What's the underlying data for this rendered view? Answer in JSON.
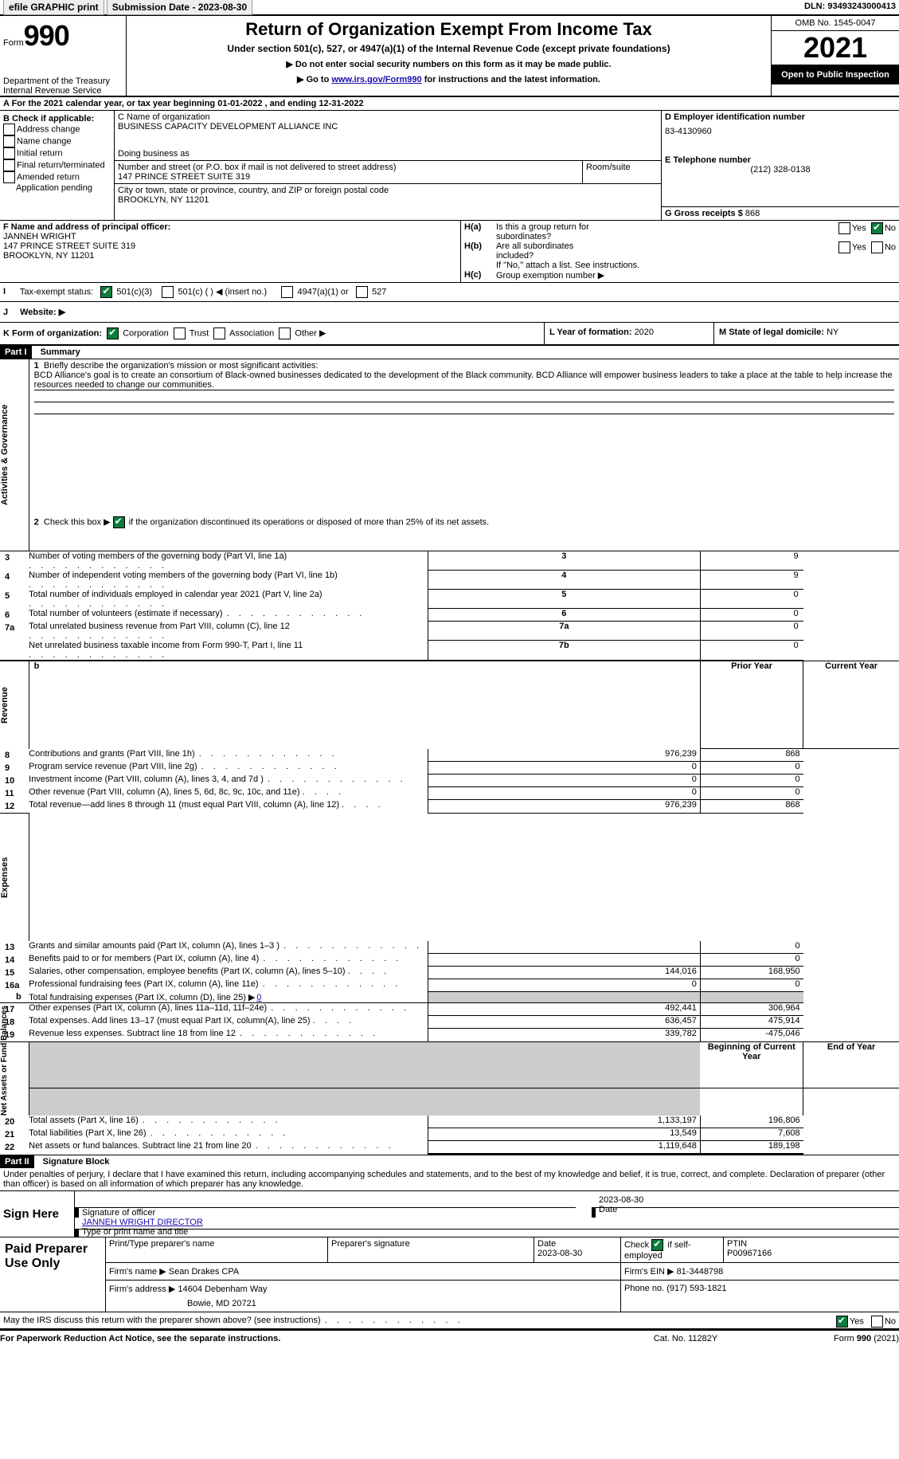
{
  "topbar": {
    "efile": "efile GRAPHIC print",
    "subdate_label": "Submission Date - 2023-08-30",
    "dln": "DLN: 93493243000413"
  },
  "header": {
    "form_label": "Form",
    "form_number": "990",
    "title": "Return of Organization Exempt From Income Tax",
    "subtitle": "Under section 501(c), 527, or 4947(a)(1) of the Internal Revenue Code (except private foundations)",
    "ssn_notice": "Do not enter social security numbers on this form as it may be made public.",
    "goto": "Go to ",
    "goto_link": "www.irs.gov/Form990",
    "goto_suffix": " for instructions and the latest information.",
    "dept": "Department of the Treasury",
    "irs": "Internal Revenue Service",
    "omb": "OMB No. 1545-0047",
    "year": "2021",
    "public": "Open to Public Inspection"
  },
  "period": {
    "label_a": "A For the 2021 calendar year, or tax year beginning ",
    "begin": "01-01-2022",
    "mid": "  , and ending ",
    "end": "12-31-2022"
  },
  "colB": {
    "label": "B Check if applicable:",
    "addr": "Address change",
    "namechg": "Name change",
    "initial": "Initial return",
    "final": "Final return/terminated",
    "amended": "Amended return",
    "app": "Application pending"
  },
  "colC": {
    "name_label": "C Name of organization",
    "name": "BUSINESS CAPACITY DEVELOPMENT ALLIANCE INC",
    "dba": "Doing business as",
    "street_label": "Number and street (or P.O. box if mail is not delivered to street address)",
    "room_label": "Room/suite",
    "street": "147 PRINCE STREET SUITE 319",
    "city_label": "City or town, state or province, country, and ZIP or foreign postal code",
    "city": "BROOKLYN, NY  11201"
  },
  "colD": {
    "label": "D Employer identification number",
    "ein": "83-4130960",
    "phone_label": "E Telephone number",
    "phone": "(212) 328-0138",
    "gross_label": "G Gross receipts $ ",
    "gross": "868"
  },
  "colF": {
    "label": "F  Name and address of principal officer:",
    "name": "JANNEH WRIGHT",
    "street": "147 PRINCE STREET SUITE 319",
    "city": "BROOKLYN, NY  11201"
  },
  "colH": {
    "a_label": "H(a)",
    "a_text1": "Is this a group return for",
    "a_text2": "subordinates?",
    "b_label": "H(b)",
    "b_text1": "Are all subordinates",
    "b_text2": "included?",
    "list_text": "If \"No,\" attach a list. See instructions.",
    "c_label": "H(c)",
    "c_text": "Group exemption number ▶",
    "yes": "Yes",
    "no": "No"
  },
  "taxexempt": {
    "label": "Tax-exempt status:",
    "c3": "501(c)(3)",
    "c_other": "501(c) (  ) ◀ (insert no.)",
    "a4947": "4947(a)(1) or",
    "s527": "527"
  },
  "website": {
    "label": "Website: ▶"
  },
  "rowK": {
    "label": "K Form of organization:",
    "corp": "Corporation",
    "trust": "Trust",
    "assoc": "Association",
    "other": "Other ▶"
  },
  "rowL": {
    "label": "L Year of formation: ",
    "val": "2020"
  },
  "rowM": {
    "label": "M State of legal domicile: ",
    "val": "NY"
  },
  "part1": {
    "header": "Part I",
    "title": "Summary",
    "v_act": "Activities & Governance",
    "v_rev": "Revenue",
    "v_exp": "Expenses",
    "v_net": "Net Assets or Fund Balances",
    "l1": "Briefly describe the organization's mission or most significant activities:",
    "mission": "BCD Alliance's goal is to create an consortium of Black-owned businesses dedicated to the development of the Black community. BCD Alliance will empower business leaders to take a place at the table to help increase the resources needed to change our communities.",
    "l2": "Check this box ▶ ",
    "l2b": " if the organization discontinued its operations or disposed of more than 25% of its net assets.",
    "lines": [
      {
        "n": "3",
        "t": "Number of voting members of the governing body (Part VI, line 1a)",
        "box": "3",
        "v": "9"
      },
      {
        "n": "4",
        "t": "Number of independent voting members of the governing body (Part VI, line 1b)",
        "box": "4",
        "v": "9"
      },
      {
        "n": "5",
        "t": "Total number of individuals employed in calendar year 2021 (Part V, line 2a)",
        "box": "5",
        "v": "0"
      },
      {
        "n": "6",
        "t": "Total number of volunteers (estimate if necessary)",
        "box": "6",
        "v": "0"
      },
      {
        "n": "7a",
        "t": "Total unrelated business revenue from Part VIII, column (C), line 12",
        "box": "7a",
        "v": "0"
      },
      {
        "n": "",
        "t": "Net unrelated business taxable income from Form 990-T, Part I, line 11",
        "box": "7b",
        "v": "0"
      }
    ],
    "col_prior": "Prior Year",
    "col_curr": "Current Year",
    "col_begin": "Beginning of Current Year",
    "col_end": "End of Year",
    "rev": [
      {
        "n": "8",
        "t": "Contributions and grants (Part VIII, line 1h)",
        "p": "976,239",
        "c": "868"
      },
      {
        "n": "9",
        "t": "Program service revenue (Part VIII, line 2g)",
        "p": "0",
        "c": "0"
      },
      {
        "n": "10",
        "t": "Investment income (Part VIII, column (A), lines 3, 4, and 7d )",
        "p": "0",
        "c": "0"
      },
      {
        "n": "11",
        "t": "Other revenue (Part VIII, column (A), lines 5, 6d, 8c, 9c, 10c, and 11e)",
        "p": "0",
        "c": "0"
      },
      {
        "n": "12",
        "t": "Total revenue—add lines 8 through 11 (must equal Part VIII, column (A), line 12)",
        "p": "976,239",
        "c": "868"
      }
    ],
    "exp_pre": [
      {
        "n": "13",
        "t": "Grants and similar amounts paid (Part IX, column (A), lines 1–3 )",
        "p": "",
        "c": "0"
      },
      {
        "n": "14",
        "t": "Benefits paid to or for members (Part IX, column (A), line 4)",
        "p": "",
        "c": "0"
      },
      {
        "n": "15",
        "t": "Salaries, other compensation, employee benefits (Part IX, column (A), lines 5–10)",
        "p": "144,016",
        "c": "168,950"
      },
      {
        "n": "16a",
        "t": "Professional fundraising fees (Part IX, column (A), line 11e)",
        "p": "0",
        "c": "0"
      }
    ],
    "l16b_pre": "Total fundraising expenses (Part IX, column (D), line 25) ▶",
    "l16b_val": "0",
    "exp_post": [
      {
        "n": "17",
        "t": "Other expenses (Part IX, column (A), lines 11a–11d, 11f–24e)",
        "p": "492,441",
        "c": "306,964"
      },
      {
        "n": "18",
        "t": "Total expenses. Add lines 13–17 (must equal Part IX, column(A), line 25)",
        "p": "636,457",
        "c": "475,914"
      },
      {
        "n": "19",
        "t": "Revenue less expenses. Subtract line 18 from line 12",
        "p": "339,782",
        "c": "-475,046"
      }
    ],
    "net": [
      {
        "n": "20",
        "t": "Total assets (Part X, line 16)",
        "p": "1,133,197",
        "c": "196,806"
      },
      {
        "n": "21",
        "t": "Total liabilities (Part X, line 26)",
        "p": "13,549",
        "c": "7,608"
      },
      {
        "n": "22",
        "t": "Net assets or fund balances. Subtract line 21 from line 20",
        "p": "1,119,648",
        "c": "189,198"
      }
    ]
  },
  "part2": {
    "header": "Part II",
    "title": "Signature Block",
    "declaration": "Under penalties of perjury, I declare that I have examined this return, including accompanying schedules and statements, and to the best of my knowledge and belief, it is true, correct, and complete. Declaration of preparer (other than officer) is based on all information of which preparer has any knowledge.",
    "signhere": "Sign Here",
    "sig_officer": "Signature of officer",
    "sig_date": "Date",
    "sig_date_val": "2023-08-30",
    "typed": "JANNEH WRIGHT  DIRECTOR",
    "typed_label": "Type or print name and title",
    "paid": "Paid Preparer Use Only",
    "prep_name": "Print/Type preparer's name",
    "prep_sig": "Preparer's signature",
    "prep_date_label": "Date",
    "prep_date": "2023-08-30",
    "self": "Check ",
    "self2": " if self-employed",
    "ptin_label": "PTIN",
    "ptin": "P00967166",
    "firm_name_label": "Firm's name   ▶ ",
    "firm_name": "Sean Drakes CPA",
    "firm_ein_label": "Firm's EIN ▶ ",
    "firm_ein": "81-3448798",
    "firm_addr_label": "Firm's address ▶ ",
    "firm_addr": "14604 Debenham Way",
    "firm_addr2": "Bowie, MD  20721",
    "firm_phone_label": "Phone no. ",
    "firm_phone": "(917) 593-1821",
    "discuss": "May the IRS discuss this return with the preparer shown above? (see instructions)",
    "yes": "Yes",
    "no": "No"
  },
  "footer": {
    "left": "For Paperwork Reduction Act Notice, see the separate instructions.",
    "mid": "Cat. No. 11282Y",
    "right": "Form 990 (2021)"
  }
}
